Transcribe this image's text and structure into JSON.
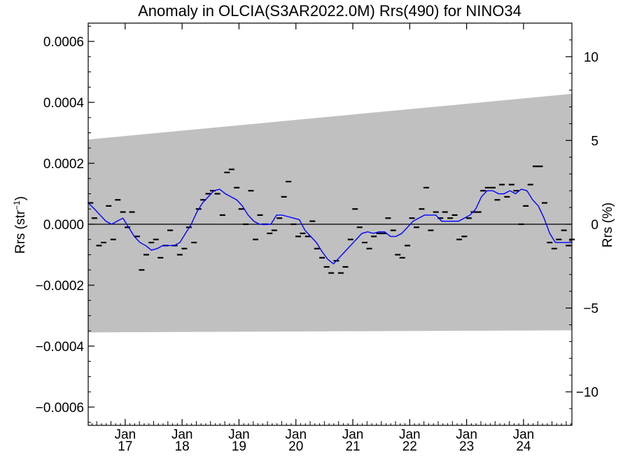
{
  "chart_data": {
    "type": "line",
    "title": "Anomaly in OLCIA(S3AR2022.0M) Rrs(490) for NINO34",
    "ylabel_left": "Rrs (str",
    "ylabel_left_sup": "−1",
    "ylabel_left_close": ")",
    "ylabel_right": "Rrs (%)",
    "xlim": [
      2016.35,
      2024.85
    ],
    "ylim": [
      -0.00066,
      0.00066
    ],
    "y2lim": [
      -12,
      12
    ],
    "grid": false,
    "legend": "none",
    "yticks_left": [
      {
        "value": 0.0006,
        "label": "0.0006"
      },
      {
        "value": 0.0004,
        "label": "0.0004"
      },
      {
        "value": 0.0002,
        "label": "0.0002"
      },
      {
        "value": 0.0,
        "label": "0.0000"
      },
      {
        "value": -0.0002,
        "label": "−0.0002"
      },
      {
        "value": -0.0004,
        "label": "−0.0004"
      },
      {
        "value": -0.0006,
        "label": "−0.0006"
      }
    ],
    "yticks_right": [
      {
        "value": 10,
        "label": "10"
      },
      {
        "value": 5,
        "label": "5"
      },
      {
        "value": 0,
        "label": "0"
      },
      {
        "value": -5,
        "label": "−5"
      },
      {
        "value": -10,
        "label": "−10"
      }
    ],
    "xticks": [
      {
        "value": 2017.0,
        "month": "Jan",
        "year": "17"
      },
      {
        "value": 2018.0,
        "month": "Jan",
        "year": "18"
      },
      {
        "value": 2019.0,
        "month": "Jan",
        "year": "19"
      },
      {
        "value": 2020.0,
        "month": "Jan",
        "year": "20"
      },
      {
        "value": 2021.0,
        "month": "Jan",
        "year": "21"
      },
      {
        "value": 2022.0,
        "month": "Jan",
        "year": "22"
      },
      {
        "value": 2023.0,
        "month": "Jan",
        "year": "23"
      },
      {
        "value": 2024.0,
        "month": "Jan",
        "year": "24"
      }
    ],
    "uncertainty_band": {
      "color": "#c0c0c0",
      "upper": [
        [
          2016.35,
          0.000278
        ],
        [
          2024.85,
          0.000428
        ]
      ],
      "lower": [
        [
          2016.35,
          -0.000355
        ],
        [
          2024.85,
          -0.000348
        ]
      ]
    },
    "series": [
      {
        "style": "markers",
        "color": "#000000",
        "points": [
          [
            2016.39,
            7e-05
          ],
          [
            2016.46,
            2e-05
          ],
          [
            2016.54,
            -7e-05
          ],
          [
            2016.62,
            -6e-05
          ],
          [
            2016.71,
            6e-05
          ],
          [
            2016.79,
            -5e-05
          ],
          [
            2016.87,
            8e-05
          ],
          [
            2016.96,
            4e-05
          ],
          [
            2017.04,
            -1e-05
          ],
          [
            2017.12,
            4e-05
          ],
          [
            2017.21,
            -4e-05
          ],
          [
            2017.29,
            -0.00015
          ],
          [
            2017.37,
            -0.0001
          ],
          [
            2017.46,
            -6e-05
          ],
          [
            2017.54,
            -5e-05
          ],
          [
            2017.62,
            -0.00011
          ],
          [
            2017.71,
            -7e-05
          ],
          [
            2017.79,
            -2e-05
          ],
          [
            2017.87,
            -7e-05
          ],
          [
            2017.96,
            -0.0001
          ],
          [
            2018.04,
            -8e-05
          ],
          [
            2018.12,
            -1e-05
          ],
          [
            2018.21,
            -6e-05
          ],
          [
            2018.29,
            5e-05
          ],
          [
            2018.37,
            8e-05
          ],
          [
            2018.46,
            0.0001
          ],
          [
            2018.54,
            0.00011
          ],
          [
            2018.62,
            0.0001
          ],
          [
            2018.71,
            3e-05
          ],
          [
            2018.79,
            0.00017
          ],
          [
            2018.87,
            0.00018
          ],
          [
            2018.96,
            0.00012
          ],
          [
            2019.04,
            5e-05
          ],
          [
            2019.12,
            0.0
          ],
          [
            2019.21,
            0.00011
          ],
          [
            2019.29,
            -5e-05
          ],
          [
            2019.37,
            3e-05
          ],
          [
            2019.46,
            0.0
          ],
          [
            2019.54,
            -3e-05
          ],
          [
            2019.62,
            -2e-05
          ],
          [
            2019.71,
            2e-05
          ],
          [
            2019.79,
            9e-05
          ],
          [
            2019.87,
            0.00014
          ],
          [
            2019.96,
            0.0
          ],
          [
            2020.04,
            -4e-05
          ],
          [
            2020.12,
            -3e-05
          ],
          [
            2020.21,
            -4e-05
          ],
          [
            2020.29,
            1e-05
          ],
          [
            2020.37,
            -8e-05
          ],
          [
            2020.46,
            -0.00011
          ],
          [
            2020.54,
            -0.00014
          ],
          [
            2020.62,
            -0.00016
          ],
          [
            2020.71,
            -0.00012
          ],
          [
            2020.79,
            -0.00016
          ],
          [
            2020.87,
            -0.00014
          ],
          [
            2020.96,
            -5e-05
          ],
          [
            2021.04,
            5e-05
          ],
          [
            2021.12,
            -1e-05
          ],
          [
            2021.21,
            -6e-05
          ],
          [
            2021.29,
            -8e-05
          ],
          [
            2021.37,
            -4e-05
          ],
          [
            2021.46,
            -3e-05
          ],
          [
            2021.54,
            -3e-05
          ],
          [
            2021.62,
            2e-05
          ],
          [
            2021.71,
            -2e-05
          ],
          [
            2021.79,
            -0.0001
          ],
          [
            2021.87,
            -0.00011
          ],
          [
            2021.96,
            -7e-05
          ],
          [
            2022.04,
            2e-05
          ],
          [
            2022.12,
            -1e-05
          ],
          [
            2022.21,
            5e-05
          ],
          [
            2022.29,
            0.00012
          ],
          [
            2022.37,
            -2e-05
          ],
          [
            2022.46,
            4e-05
          ],
          [
            2022.54,
            2e-05
          ],
          [
            2022.62,
            4e-05
          ],
          [
            2022.71,
            2e-05
          ],
          [
            2022.79,
            3e-05
          ],
          [
            2022.87,
            -5e-05
          ],
          [
            2022.96,
            -4e-05
          ],
          [
            2023.04,
            2e-05
          ],
          [
            2023.12,
            4e-05
          ],
          [
            2023.21,
            4e-05
          ],
          [
            2023.29,
            0.00011
          ],
          [
            2023.37,
            0.00012
          ],
          [
            2023.46,
            0.00012
          ],
          [
            2023.54,
            8e-05
          ],
          [
            2023.62,
            0.00013
          ],
          [
            2023.71,
            9e-05
          ],
          [
            2023.79,
            0.00013
          ],
          [
            2023.87,
            0.00011
          ],
          [
            2023.96,
            0.0
          ],
          [
            2024.04,
            6e-05
          ],
          [
            2024.12,
            0.00013
          ],
          [
            2024.21,
            0.00019
          ],
          [
            2024.29,
            0.00019
          ],
          [
            2024.37,
            7e-05
          ],
          [
            2024.46,
            -6e-05
          ],
          [
            2024.54,
            -8e-05
          ],
          [
            2024.62,
            -5e-05
          ],
          [
            2024.71,
            -2e-05
          ],
          [
            2024.79,
            -7e-05
          ],
          [
            2024.85,
            -5e-05
          ]
        ]
      },
      {
        "style": "line",
        "color": "#0000ff",
        "points": [
          [
            2016.35,
            7e-05
          ],
          [
            2016.46,
            5e-05
          ],
          [
            2016.56,
            3e-05
          ],
          [
            2016.66,
            1e-05
          ],
          [
            2016.76,
            0.0
          ],
          [
            2016.86,
            1e-05
          ],
          [
            2016.96,
            2e-05
          ],
          [
            2017.06,
            -1e-05
          ],
          [
            2017.16,
            -4e-05
          ],
          [
            2017.26,
            -6e-05
          ],
          [
            2017.36,
            -7e-05
          ],
          [
            2017.46,
            -8.5e-05
          ],
          [
            2017.56,
            -8e-05
          ],
          [
            2017.66,
            -7e-05
          ],
          [
            2017.76,
            -7e-05
          ],
          [
            2017.86,
            -7e-05
          ],
          [
            2017.96,
            -6e-05
          ],
          [
            2018.06,
            -3e-05
          ],
          [
            2018.16,
            0.0
          ],
          [
            2018.26,
            4e-05
          ],
          [
            2018.36,
            7e-05
          ],
          [
            2018.46,
            9e-05
          ],
          [
            2018.56,
            0.00011
          ],
          [
            2018.66,
            0.000115
          ],
          [
            2018.76,
            0.0001
          ],
          [
            2018.86,
            9e-05
          ],
          [
            2018.96,
            8e-05
          ],
          [
            2019.06,
            6e-05
          ],
          [
            2019.16,
            3e-05
          ],
          [
            2019.26,
            1e-05
          ],
          [
            2019.36,
            0.0
          ],
          [
            2019.46,
            0.0
          ],
          [
            2019.56,
            0.0
          ],
          [
            2019.66,
            3e-05
          ],
          [
            2019.76,
            3e-05
          ],
          [
            2019.86,
            2.5e-05
          ],
          [
            2019.96,
            2e-05
          ],
          [
            2020.06,
            1.5e-05
          ],
          [
            2020.16,
            -2e-05
          ],
          [
            2020.26,
            -4e-05
          ],
          [
            2020.36,
            -6e-05
          ],
          [
            2020.46,
            -9e-05
          ],
          [
            2020.56,
            -0.000115
          ],
          [
            2020.66,
            -0.00013
          ],
          [
            2020.76,
            -0.00011
          ],
          [
            2020.86,
            -9e-05
          ],
          [
            2020.96,
            -7e-05
          ],
          [
            2021.06,
            -5e-05
          ],
          [
            2021.16,
            -3e-05
          ],
          [
            2021.26,
            -2.5e-05
          ],
          [
            2021.36,
            -3e-05
          ],
          [
            2021.46,
            -2.5e-05
          ],
          [
            2021.56,
            -2.5e-05
          ],
          [
            2021.66,
            -4e-05
          ],
          [
            2021.76,
            -4e-05
          ],
          [
            2021.86,
            -3e-05
          ],
          [
            2021.96,
            -1e-05
          ],
          [
            2022.06,
            1e-05
          ],
          [
            2022.16,
            2e-05
          ],
          [
            2022.26,
            3e-05
          ],
          [
            2022.36,
            3e-05
          ],
          [
            2022.46,
            3e-05
          ],
          [
            2022.56,
            1e-05
          ],
          [
            2022.66,
            1e-05
          ],
          [
            2022.76,
            1e-05
          ],
          [
            2022.86,
            1e-05
          ],
          [
            2022.96,
            2e-05
          ],
          [
            2023.06,
            3e-05
          ],
          [
            2023.16,
            5e-05
          ],
          [
            2023.26,
            9e-05
          ],
          [
            2023.36,
            0.00011
          ],
          [
            2023.46,
            0.00011
          ],
          [
            2023.56,
            0.0001
          ],
          [
            2023.66,
            0.0001
          ],
          [
            2023.76,
            0.00011
          ],
          [
            2023.86,
            0.0001
          ],
          [
            2023.96,
            0.000115
          ],
          [
            2024.06,
            0.00011
          ],
          [
            2024.16,
            8e-05
          ],
          [
            2024.26,
            6e-05
          ],
          [
            2024.36,
            2e-05
          ],
          [
            2024.46,
            -3e-05
          ],
          [
            2024.56,
            -6e-05
          ],
          [
            2024.66,
            -6e-05
          ],
          [
            2024.76,
            -6e-05
          ],
          [
            2024.85,
            -6e-05
          ]
        ]
      }
    ]
  }
}
